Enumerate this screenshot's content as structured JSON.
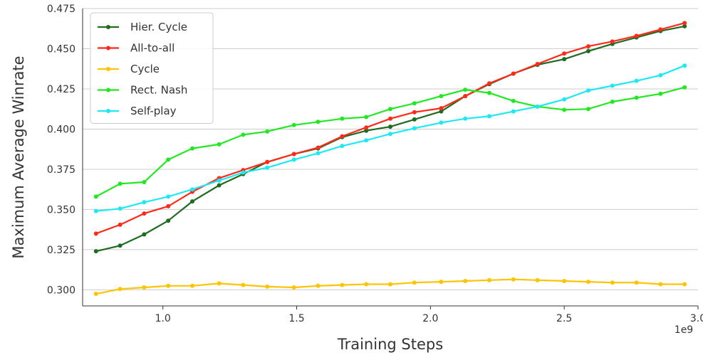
{
  "chart_data": {
    "type": "line",
    "xlabel": "Training Steps",
    "ylabel": "Maximum Average Winrate",
    "x_offset_label": "1e9",
    "xlim": [
      0.7,
      3.0
    ],
    "ylim": [
      0.29,
      0.475
    ],
    "xticks": [
      "1.0",
      "1.5",
      "2.0",
      "2.5",
      "3.0"
    ],
    "yticks": [
      "0.300",
      "0.325",
      "0.350",
      "0.375",
      "0.400",
      "0.425",
      "0.450",
      "0.475"
    ],
    "grid": "horizontal",
    "legend_position": "top-left",
    "x": [
      0.75,
      0.84,
      0.93,
      1.02,
      1.11,
      1.21,
      1.3,
      1.39,
      1.49,
      1.58,
      1.67,
      1.76,
      1.85,
      1.94,
      2.04,
      2.13,
      2.22,
      2.31,
      2.4,
      2.5,
      2.59,
      2.68,
      2.77,
      2.86,
      2.95
    ],
    "series": [
      {
        "name": "Hier. Cycle",
        "color": "#1f6b1f",
        "values": [
          0.324,
          0.3275,
          0.3345,
          0.343,
          0.355,
          0.365,
          0.372,
          0.3795,
          0.3845,
          0.388,
          0.395,
          0.399,
          0.4015,
          0.406,
          0.411,
          0.4205,
          0.428,
          0.4345,
          0.44,
          0.4435,
          0.4485,
          0.453,
          0.457,
          0.461,
          0.464
        ]
      },
      {
        "name": "All-to-all",
        "color": "#ff2a1a",
        "values": [
          0.335,
          0.3405,
          0.3475,
          0.352,
          0.361,
          0.3695,
          0.3745,
          0.3795,
          0.3845,
          0.3885,
          0.3955,
          0.401,
          0.4065,
          0.4105,
          0.413,
          0.4205,
          0.4285,
          0.4345,
          0.4405,
          0.447,
          0.4515,
          0.4545,
          0.458,
          0.462,
          0.466
        ]
      },
      {
        "name": "Cycle",
        "color": "#ffc400",
        "values": [
          0.2975,
          0.3005,
          0.3015,
          0.3025,
          0.3025,
          0.304,
          0.303,
          0.302,
          0.3015,
          0.3025,
          0.303,
          0.3035,
          0.3035,
          0.3045,
          0.305,
          0.3055,
          0.306,
          0.3065,
          0.306,
          0.3055,
          0.305,
          0.3045,
          0.3045,
          0.3035,
          0.3035
        ]
      },
      {
        "name": "Rect. Nash",
        "color": "#22e822",
        "values": [
          0.358,
          0.366,
          0.367,
          0.381,
          0.388,
          0.3905,
          0.3965,
          0.3985,
          0.4025,
          0.4045,
          0.4065,
          0.4075,
          0.4125,
          0.416,
          0.4205,
          0.4245,
          0.4225,
          0.4175,
          0.414,
          0.412,
          0.4125,
          0.417,
          0.4195,
          0.422,
          0.426
        ]
      },
      {
        "name": "Self-play",
        "color": "#1ee8f2",
        "values": [
          0.349,
          0.3505,
          0.3545,
          0.358,
          0.3625,
          0.368,
          0.373,
          0.376,
          0.381,
          0.385,
          0.3895,
          0.393,
          0.397,
          0.4005,
          0.404,
          0.4065,
          0.408,
          0.411,
          0.414,
          0.4185,
          0.424,
          0.427,
          0.43,
          0.4335,
          0.4395
        ]
      }
    ]
  }
}
